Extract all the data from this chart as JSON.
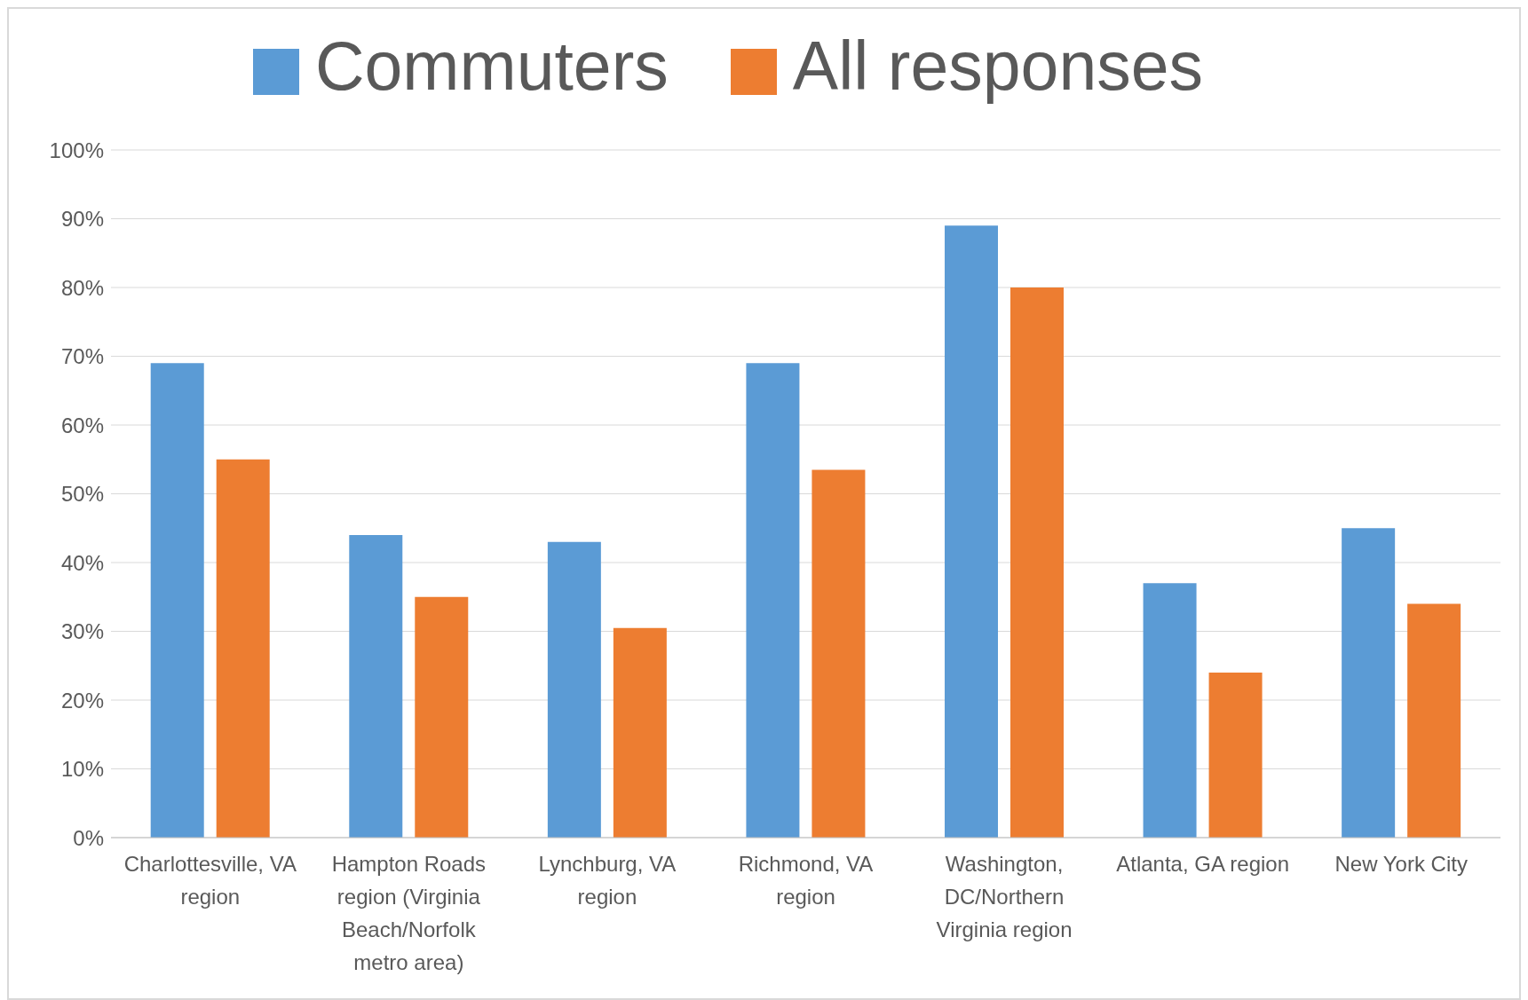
{
  "chart_data": {
    "type": "bar",
    "categories": [
      "Charlottesville, VA region",
      "Hampton Roads region (Virginia Beach/Norfolk metro area)",
      "Lynchburg, VA region",
      "Richmond, VA region",
      "Washington, DC/Northern Virginia region",
      "Atlanta, GA region",
      "New York City"
    ],
    "series": [
      {
        "name": "Commuters",
        "color": "#5b9bd5",
        "values": [
          69,
          44,
          43,
          69,
          89,
          37,
          45
        ]
      },
      {
        "name": "All responses",
        "color": "#ed7d31",
        "values": [
          55,
          35,
          30.5,
          53.5,
          80,
          24,
          34
        ]
      }
    ],
    "ylim": [
      0,
      100
    ],
    "yticks": [
      {
        "value": 0,
        "label": "0%"
      },
      {
        "value": 10,
        "label": "10%"
      },
      {
        "value": 20,
        "label": "20%"
      },
      {
        "value": 30,
        "label": "30%"
      },
      {
        "value": 40,
        "label": "40%"
      },
      {
        "value": 50,
        "label": "50%"
      },
      {
        "value": 60,
        "label": "60%"
      },
      {
        "value": 70,
        "label": "70%"
      },
      {
        "value": 80,
        "label": "80%"
      },
      {
        "value": 90,
        "label": "90%"
      },
      {
        "value": 100,
        "label": "100%"
      }
    ],
    "grid": "y",
    "legend": "top"
  }
}
